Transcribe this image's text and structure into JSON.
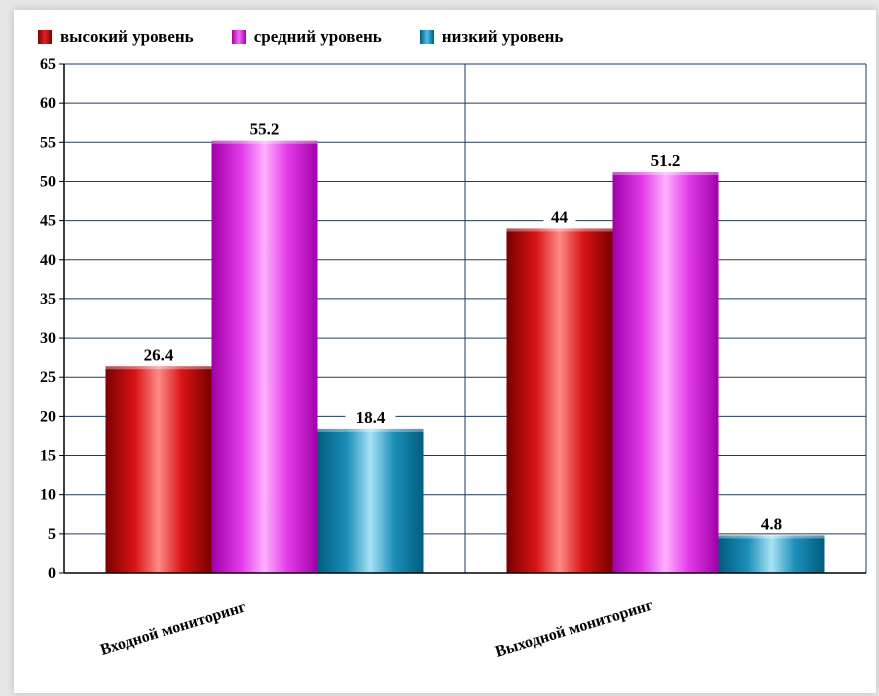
{
  "chart_data": {
    "type": "bar",
    "categories": [
      "Входной мониторинг",
      "Выходной мониторинг"
    ],
    "series": [
      {
        "name": "высокий уровень",
        "values": [
          26.4,
          44
        ],
        "color": "#cc1111"
      },
      {
        "name": "средний уровень",
        "values": [
          55.2,
          51.2
        ],
        "color": "#e035e8"
      },
      {
        "name": "низкий уровень",
        "values": [
          18.4,
          4.8
        ],
        "color": "#1a8ab4"
      }
    ],
    "data_labels": [
      [
        "26.4",
        "44"
      ],
      [
        "55.2",
        "51.2"
      ],
      [
        "18.4",
        "4.8"
      ]
    ],
    "yticks": [
      "0",
      "5",
      "10",
      "15",
      "20",
      "25",
      "30",
      "35",
      "40",
      "45",
      "50",
      "55",
      "60",
      "65"
    ],
    "ylim": [
      0,
      65
    ],
    "title": "",
    "xlabel": "",
    "ylabel": "",
    "grid": true,
    "legend_position": "top"
  }
}
